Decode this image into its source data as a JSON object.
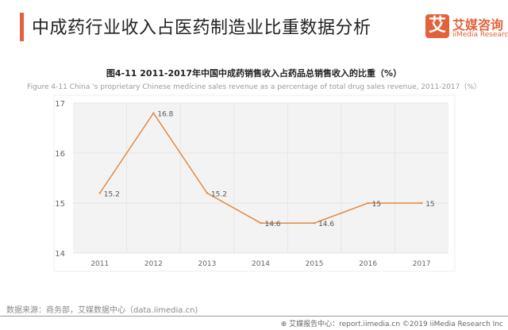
{
  "header": {
    "title": "中成药行业收入占医药制造业比重数据分析"
  },
  "logo": {
    "mark": "艾",
    "cn": "艾媒咨询",
    "en": "iiMedia Research"
  },
  "colors": {
    "accent": "#e2623c",
    "line": "#e08a45",
    "plot_bg": "#f3f3f3"
  },
  "chart_data": {
    "type": "line",
    "title": "图4-11 2011-2017年中国中成药销售收入占药品总销售收入的比重（%）",
    "subtitle": "Figure 4-11 China  's proprietary Chinese medicine sales revenue as a percentage of total drug sales revenue, 2011-2017（%）",
    "categories": [
      "2011",
      "2012",
      "2013",
      "2014",
      "2015",
      "2016",
      "2017"
    ],
    "values": [
      15.2,
      16.8,
      15.2,
      14.6,
      14.6,
      15,
      15
    ],
    "labels": [
      "15.2",
      "16.8",
      "15.2",
      "14.6",
      "14.6",
      "15",
      "15"
    ],
    "ylim": [
      14,
      17
    ],
    "yticks": [
      "14",
      "15",
      "16",
      "17"
    ],
    "grid": true,
    "legend": "none"
  },
  "footer": {
    "source": "数据来源：商务部，艾媒数据中心（data.iimedia.cn)",
    "copyright": "艾媒报告中心：report.iimedia.cn  ©2019  iiMedia Research Inc"
  }
}
